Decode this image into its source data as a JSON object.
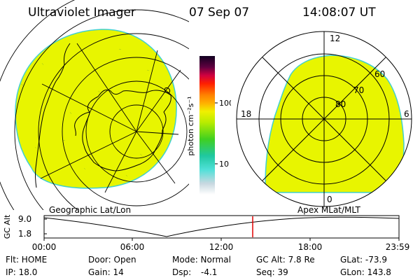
{
  "header": {
    "title": "Ultraviolet Imager",
    "date": "07 Sep 07",
    "time": "14:08:07 UT"
  },
  "colors": {
    "fill": "#e8f500",
    "edge": "#40d0d0",
    "marker": "#e00000"
  },
  "colorbar": {
    "label": "photon cm⁻²s⁻¹",
    "ticks": [
      "100",
      "10"
    ]
  },
  "left_panel": {
    "label": "Geographic Lat/Lon"
  },
  "right_panel": {
    "label": "Apex MLat/MLT",
    "mlt_labels": {
      "top": "12",
      "left": "18",
      "right": "6",
      "bottom": "0"
    },
    "lat_labels": [
      "60",
      "70",
      "80"
    ]
  },
  "altitude_plot": {
    "ylabel": "GC Alt",
    "yticks": [
      "9.0",
      "1.8"
    ],
    "xticks": [
      "00:00",
      "06:00",
      "12:00",
      "18:00",
      "23:59"
    ]
  },
  "info": {
    "row1": {
      "flt": "Flt: HOME",
      "door": "Door: Open",
      "mode": "Mode: Normal",
      "gcalt": "GC Alt: 7.8 Re",
      "glat": "GLat: -73.9"
    },
    "row2": {
      "ip": "IP: 18.0",
      "gain": "Gain: 14",
      "dsp_label": "Dsp:",
      "dsp_value": "-4.1",
      "seq": "Seq: 39",
      "glon": "GLon: 143.8"
    }
  }
}
